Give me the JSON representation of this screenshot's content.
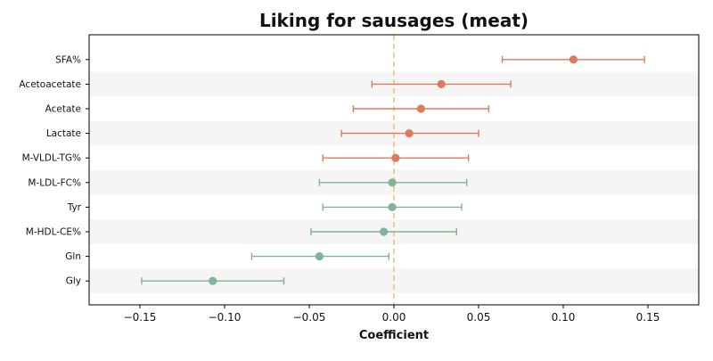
{
  "chart_data": {
    "type": "scatter",
    "title": "Liking for sausages (meat)",
    "xlabel": "Coefficient",
    "ylabel": "",
    "xlim": [
      -0.18,
      0.18
    ],
    "xticks": [
      -0.15,
      -0.1,
      -0.05,
      0.0,
      0.05,
      0.1,
      0.15
    ],
    "xtick_labels": [
      "−0.15",
      "−0.10",
      "−0.05",
      "0.00",
      "0.05",
      "0.10",
      "0.15"
    ],
    "reference_line": 0.0,
    "grid": false,
    "alternating_row_bands": true,
    "categories": [
      "SFA%",
      "Acetoacetate",
      "Acetate",
      "Lactate",
      "M-VLDL-TG%",
      "M-LDL-FC%",
      "Tyr",
      "M-HDL-CE%",
      "Gln",
      "Gly"
    ],
    "points": [
      {
        "label": "SFA%",
        "estimate": 0.106,
        "ci_low": 0.064,
        "ci_high": 0.148,
        "color": "#e07a5f"
      },
      {
        "label": "Acetoacetate",
        "estimate": 0.028,
        "ci_low": -0.013,
        "ci_high": 0.069,
        "color": "#e07a5f"
      },
      {
        "label": "Acetate",
        "estimate": 0.016,
        "ci_low": -0.024,
        "ci_high": 0.056,
        "color": "#e07a5f"
      },
      {
        "label": "Lactate",
        "estimate": 0.009,
        "ci_low": -0.031,
        "ci_high": 0.05,
        "color": "#e07a5f"
      },
      {
        "label": "M-VLDL-TG%",
        "estimate": 0.001,
        "ci_low": -0.042,
        "ci_high": 0.044,
        "color": "#e07a5f"
      },
      {
        "label": "M-LDL-FC%",
        "estimate": -0.001,
        "ci_low": -0.044,
        "ci_high": 0.043,
        "color": "#81b29a"
      },
      {
        "label": "Tyr",
        "estimate": -0.001,
        "ci_low": -0.042,
        "ci_high": 0.04,
        "color": "#81b29a"
      },
      {
        "label": "M-HDL-CE%",
        "estimate": -0.006,
        "ci_low": -0.049,
        "ci_high": 0.037,
        "color": "#81b29a"
      },
      {
        "label": "Gln",
        "estimate": -0.044,
        "ci_low": -0.084,
        "ci_high": -0.003,
        "color": "#81b29a"
      },
      {
        "label": "Gly",
        "estimate": -0.107,
        "ci_low": -0.149,
        "ci_high": -0.065,
        "color": "#81b29a"
      }
    ],
    "colors": {
      "positive": "#e07a5f",
      "negative": "#81b29a",
      "reference_line": "#f2c27b",
      "band": "#f5f5f5"
    }
  }
}
